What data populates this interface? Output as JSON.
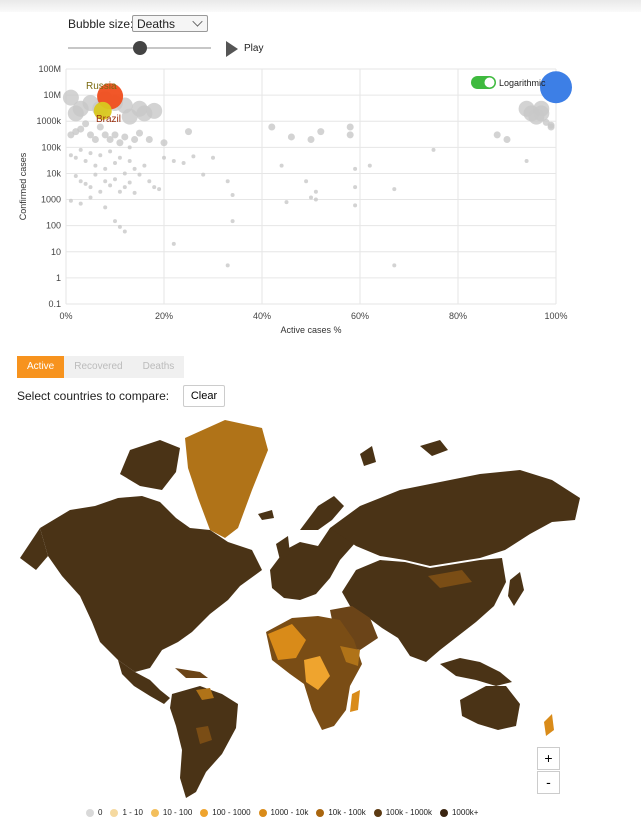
{
  "controls": {
    "bubble_size_label": "Bubble size:",
    "bubble_size_value": "Deaths",
    "play_label": "Play",
    "logarithmic_label": "Logarithmic",
    "logarithmic_on": true,
    "slider_position": 0.5
  },
  "chart_data": {
    "type": "scatter",
    "xlabel": "Active cases %",
    "ylabel": "Confirmed cases",
    "x_ticks": [
      "0%",
      "20%",
      "40%",
      "60%",
      "80%",
      "100%"
    ],
    "y_ticks": [
      "0.1",
      "1",
      "10",
      "100",
      "1000",
      "10k",
      "100k",
      "1000k",
      "10M",
      "100M"
    ],
    "xlim": [
      0,
      100
    ],
    "ylim": [
      0.1,
      100000000
    ],
    "y_scale": "log",
    "grid": true,
    "highlighted": [
      {
        "label": "Russia",
        "x": 9,
        "y": 9000000,
        "color": "#f04e1e"
      },
      {
        "label": "Brazil",
        "x": 7.5,
        "y": 2500000,
        "color": "#d9c81e"
      }
    ],
    "big_point": {
      "x": 100,
      "y": 20000000,
      "color": "#3d7fe6"
    },
    "points": [
      [
        1,
        8000000
      ],
      [
        2,
        2000000
      ],
      [
        3,
        3000000
      ],
      [
        5,
        5000000
      ],
      [
        7,
        3000000
      ],
      [
        8,
        7000000
      ],
      [
        10,
        5000000
      ],
      [
        12,
        4000000
      ],
      [
        13,
        1500000
      ],
      [
        15,
        3000000
      ],
      [
        16,
        2000000
      ],
      [
        18,
        2500000
      ],
      [
        1,
        300000
      ],
      [
        2,
        400000
      ],
      [
        3,
        500000
      ],
      [
        4,
        800000
      ],
      [
        5,
        300000
      ],
      [
        6,
        200000
      ],
      [
        7,
        600000
      ],
      [
        8,
        300000
      ],
      [
        9,
        200000
      ],
      [
        10,
        300000
      ],
      [
        11,
        150000
      ],
      [
        12,
        250000
      ],
      [
        13,
        100000
      ],
      [
        14,
        200000
      ],
      [
        15,
        350000
      ],
      [
        17,
        200000
      ],
      [
        20,
        150000
      ],
      [
        25,
        400000
      ],
      [
        1,
        50000
      ],
      [
        2,
        40000
      ],
      [
        3,
        80000
      ],
      [
        4,
        30000
      ],
      [
        5,
        60000
      ],
      [
        6,
        20000
      ],
      [
        7,
        50000
      ],
      [
        8,
        15000
      ],
      [
        9,
        70000
      ],
      [
        10,
        25000
      ],
      [
        11,
        40000
      ],
      [
        12,
        10000
      ],
      [
        13,
        30000
      ],
      [
        14,
        15000
      ],
      [
        15,
        9000
      ],
      [
        16,
        20000
      ],
      [
        17,
        5000
      ],
      [
        18,
        3000
      ],
      [
        19,
        2500
      ],
      [
        20,
        40000
      ],
      [
        22,
        30000
      ],
      [
        24,
        25000
      ],
      [
        26,
        45000
      ],
      [
        28,
        9000
      ],
      [
        30,
        40000
      ],
      [
        33,
        5000
      ],
      [
        34,
        1500
      ],
      [
        2,
        8000
      ],
      [
        3,
        5000
      ],
      [
        4,
        4000
      ],
      [
        5,
        3000
      ],
      [
        6,
        9000
      ],
      [
        7,
        2000
      ],
      [
        8,
        5000
      ],
      [
        9,
        3500
      ],
      [
        10,
        6000
      ],
      [
        11,
        2000
      ],
      [
        12,
        3000
      ],
      [
        13,
        4500
      ],
      [
        14,
        1800
      ],
      [
        1,
        900
      ],
      [
        3,
        700
      ],
      [
        5,
        1200
      ],
      [
        8,
        500
      ],
      [
        10,
        150
      ],
      [
        11,
        90
      ],
      [
        12,
        60
      ],
      [
        22,
        20
      ],
      [
        33,
        3
      ],
      [
        34,
        150
      ],
      [
        42,
        600000
      ],
      [
        46,
        250000
      ],
      [
        50,
        200000
      ],
      [
        52,
        400000
      ],
      [
        58,
        300000
      ],
      [
        58,
        600000
      ],
      [
        44,
        20000
      ],
      [
        49,
        5000
      ],
      [
        50,
        1200
      ],
      [
        51,
        2000
      ],
      [
        51,
        1000
      ],
      [
        59,
        15000
      ],
      [
        59,
        3000
      ],
      [
        59,
        600
      ],
      [
        62,
        20000
      ],
      [
        67,
        2500
      ],
      [
        67,
        3
      ],
      [
        75,
        80000
      ],
      [
        88,
        300000
      ],
      [
        90,
        200000
      ],
      [
        94,
        3000000
      ],
      [
        95,
        2000000
      ],
      [
        97,
        3000000
      ],
      [
        97,
        2000000
      ],
      [
        98,
        900000
      ],
      [
        99,
        700000
      ],
      [
        99,
        600000
      ],
      [
        96,
        1500000
      ],
      [
        94,
        30000
      ],
      [
        45,
        800
      ]
    ]
  },
  "tabs": [
    "Active",
    "Recovered",
    "Deaths"
  ],
  "active_tab": 0,
  "compare": {
    "label": "Select countries to compare:",
    "clear": "Clear"
  },
  "zoom": {
    "in": "+",
    "out": "-"
  },
  "legend": [
    {
      "label": "0",
      "color": "#d9d9d9"
    },
    {
      "label": "1 - 10",
      "color": "#f5d9a0"
    },
    {
      "label": "10 - 100",
      "color": "#f3bf5c"
    },
    {
      "label": "100 - 1000",
      "color": "#efa42e"
    },
    {
      "label": "1000 - 10k",
      "color": "#d98b19"
    },
    {
      "label": "10k - 100k",
      "color": "#a9660f"
    },
    {
      "label": "100k - 1000k",
      "color": "#5b3a12"
    },
    {
      "label": "1000k+",
      "color": "#3a2410"
    }
  ]
}
